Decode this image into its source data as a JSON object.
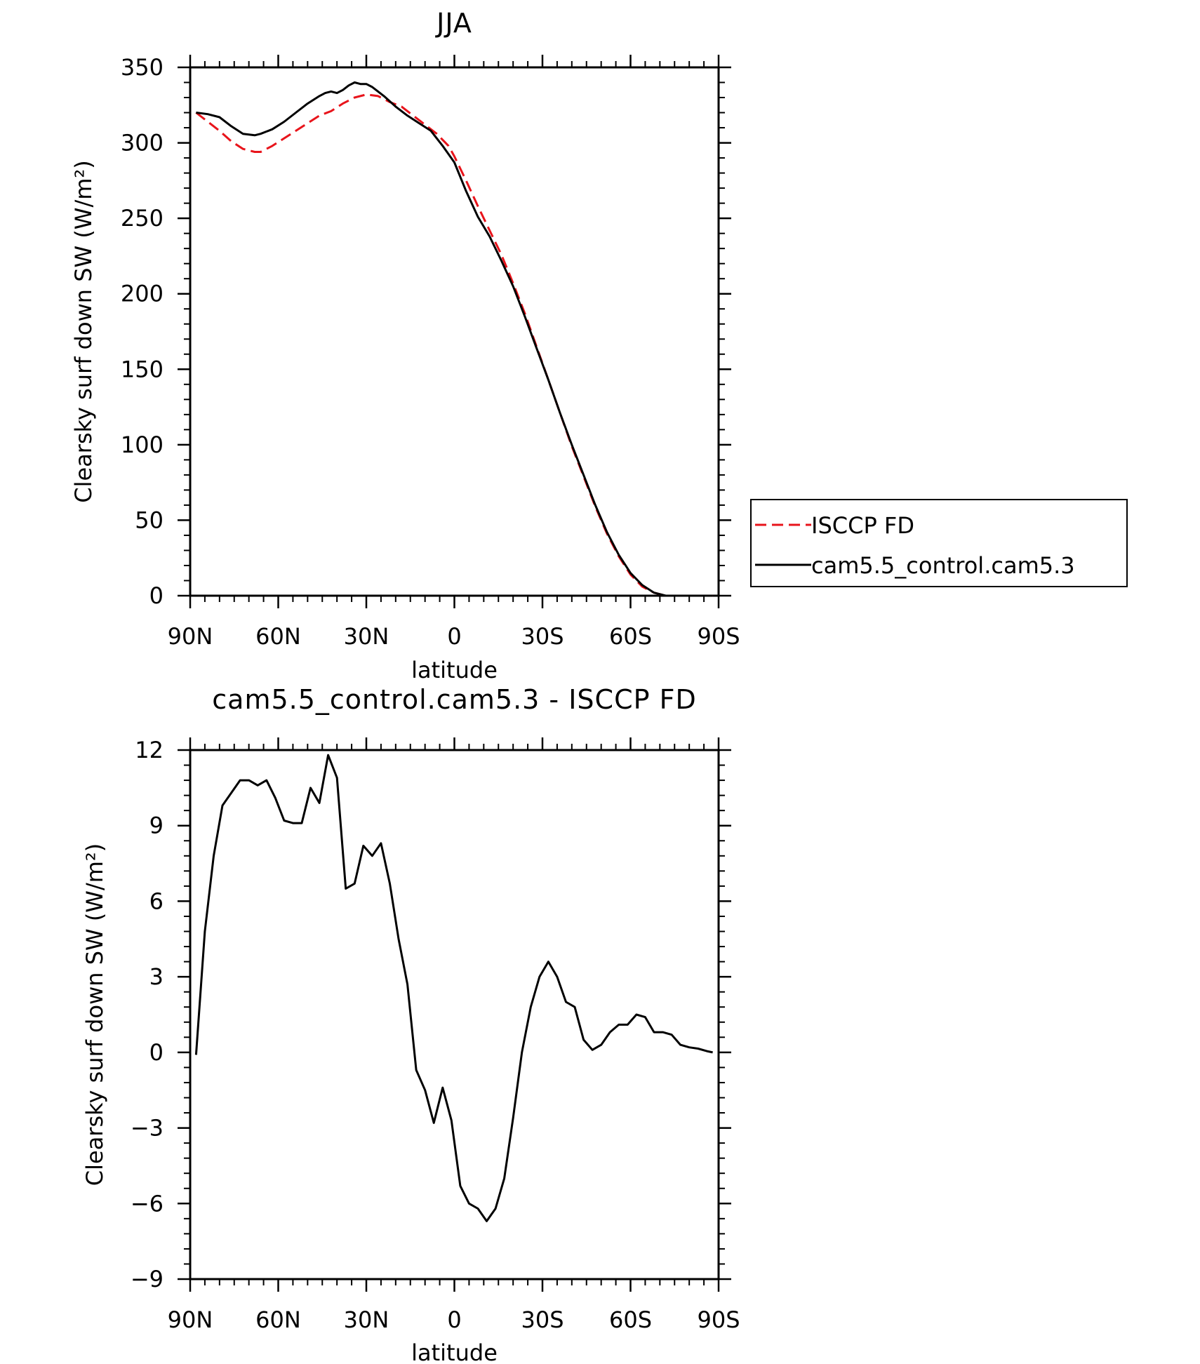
{
  "colors": {
    "isccp": "#e8141b",
    "model": "#000000",
    "axis": "#000000"
  },
  "chart_data": [
    {
      "type": "line",
      "title": "JJA",
      "xlabel": "latitude",
      "ylabel": "Clearsky surf down SW (W/m²)",
      "xlim": [
        -90,
        90
      ],
      "ylim": [
        0,
        350
      ],
      "xticks": [
        -90,
        -60,
        -30,
        0,
        30,
        60,
        90
      ],
      "xtick_labels": [
        "90N",
        "60N",
        "30N",
        "0",
        "30S",
        "60S",
        "90S"
      ],
      "yticks": [
        0,
        50,
        100,
        150,
        200,
        250,
        300,
        350
      ],
      "ytick_labels": [
        "0",
        "50",
        "100",
        "150",
        "200",
        "250",
        "300",
        "350"
      ],
      "legend": {
        "position": "right",
        "entries": [
          "ISCCP FD",
          "cam5.5_control.cam5.3"
        ]
      },
      "series": [
        {
          "name": "ISCCP FD",
          "style": "dashed",
          "color": "#e8141b",
          "x": [
            -88,
            -84,
            -80,
            -76,
            -72,
            -68,
            -66,
            -62,
            -58,
            -54,
            -50,
            -46,
            -42,
            -38,
            -34,
            -30,
            -26,
            -22,
            -18,
            -14,
            -10,
            -6,
            -2,
            0,
            4,
            8,
            12,
            16,
            20,
            24,
            28,
            32,
            36,
            40,
            44,
            48,
            52,
            56,
            60,
            64,
            68,
            72,
            76,
            80,
            84,
            88
          ],
          "y": [
            320,
            314,
            308,
            301,
            296,
            294,
            294,
            298,
            303,
            308,
            313,
            318,
            321,
            326,
            330,
            332,
            331,
            327,
            324,
            318,
            312,
            306,
            298,
            291,
            275,
            258,
            242,
            226,
            207,
            187,
            165,
            143,
            121,
            99,
            79,
            59,
            41,
            26,
            14,
            6,
            2,
            0,
            0,
            0,
            0,
            0
          ]
        },
        {
          "name": "cam5.5_control.cam5.3",
          "style": "solid",
          "color": "#000000",
          "x": [
            -88,
            -84,
            -80,
            -76,
            -72,
            -68,
            -66,
            -62,
            -58,
            -54,
            -50,
            -46,
            -44,
            -42,
            -40,
            -38,
            -36,
            -34,
            -32,
            -30,
            -28,
            -24,
            -20,
            -16,
            -12,
            -8,
            -4,
            0,
            4,
            8,
            12,
            16,
            20,
            24,
            28,
            32,
            36,
            40,
            44,
            48,
            52,
            56,
            60,
            64,
            68,
            72,
            76,
            80,
            84,
            88
          ],
          "y": [
            320,
            319,
            317,
            311,
            306,
            305,
            306,
            309,
            314,
            320,
            326,
            331,
            333,
            334,
            333,
            335,
            338,
            340,
            339,
            339,
            337,
            331,
            324,
            318,
            313,
            308,
            298,
            287,
            268,
            251,
            238,
            222,
            205,
            185,
            164,
            143,
            121,
            100,
            80,
            60,
            42,
            27,
            15,
            7,
            2,
            0,
            0,
            0,
            0,
            0
          ]
        }
      ]
    },
    {
      "type": "line",
      "title": "cam5.5_control.cam5.3 - ISCCP FD",
      "xlabel": "latitude",
      "ylabel": "Clearsky surf down SW (W/m²)",
      "xlim": [
        -90,
        90
      ],
      "ylim": [
        -9,
        12
      ],
      "xticks": [
        -90,
        -60,
        -30,
        0,
        30,
        60,
        90
      ],
      "xtick_labels": [
        "90N",
        "60N",
        "30N",
        "0",
        "30S",
        "60S",
        "90S"
      ],
      "yticks": [
        -9,
        -6,
        -3,
        0,
        3,
        6,
        9,
        12
      ],
      "ytick_labels": [
        "−9",
        "−6",
        "−3",
        "0",
        "3",
        "6",
        "9",
        "12"
      ],
      "series": [
        {
          "style": "solid",
          "color": "#000000",
          "x": [
            -88,
            -85,
            -82,
            -79,
            -76,
            -73,
            -70,
            -67,
            -64,
            -61,
            -58,
            -55,
            -52,
            -49,
            -46,
            -43,
            -40,
            -37,
            -34,
            -31,
            -28,
            -25,
            -22,
            -19,
            -16,
            -13,
            -10,
            -7,
            -4,
            -1,
            2,
            5,
            8,
            11,
            14,
            17,
            20,
            23,
            26,
            29,
            32,
            35,
            38,
            41,
            44,
            47,
            50,
            53,
            56,
            59,
            62,
            65,
            68,
            71,
            74,
            77,
            80,
            83,
            86,
            88
          ],
          "y": [
            -0.1,
            4.8,
            7.8,
            9.8,
            10.3,
            10.8,
            10.8,
            10.6,
            10.8,
            10.1,
            9.2,
            9.1,
            9.1,
            10.5,
            9.9,
            11.8,
            10.9,
            6.5,
            6.7,
            8.2,
            7.8,
            8.3,
            6.7,
            4.5,
            2.7,
            -0.7,
            -1.5,
            -2.8,
            -1.4,
            -2.7,
            -5.3,
            -6.0,
            -6.2,
            -6.7,
            -6.2,
            -5.0,
            -2.6,
            0.0,
            1.8,
            3.0,
            3.6,
            3.0,
            2.0,
            1.8,
            0.5,
            0.1,
            0.3,
            0.8,
            1.1,
            1.1,
            1.5,
            1.4,
            0.8,
            0.8,
            0.7,
            0.3,
            0.2,
            0.15,
            0.05,
            0.0
          ]
        }
      ]
    }
  ]
}
